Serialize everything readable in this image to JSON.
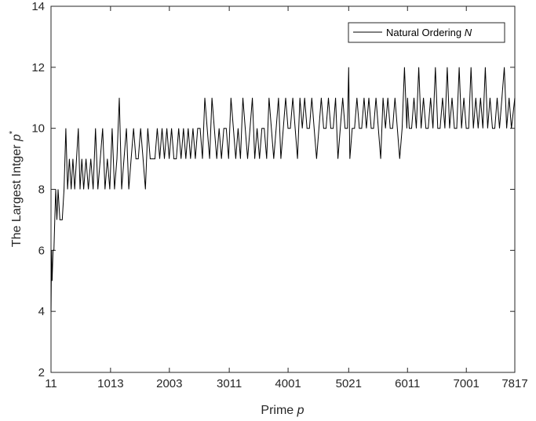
{
  "chart_data": {
    "type": "line",
    "xlabel": "Prime",
    "xlabel_var": "p",
    "ylabel": "The Largest Intger",
    "ylabel_var": "p",
    "ylabel_sup": "*",
    "x_ticks": [
      11,
      1013,
      2003,
      3011,
      4001,
      5021,
      6011,
      7001,
      7817
    ],
    "y_ticks": [
      2,
      4,
      6,
      8,
      10,
      12,
      14
    ],
    "xlim": [
      11,
      7817
    ],
    "ylim": [
      2,
      14
    ],
    "grid": false,
    "legend_position": "top-right",
    "color": "#000000",
    "series": [
      {
        "name": "Natural Ordering",
        "name_var": "N",
        "x": [
          11,
          20,
          30,
          45,
          60,
          75,
          90,
          110,
          130,
          160,
          200,
          230,
          260,
          290,
          320,
          350,
          380,
          410,
          440,
          470,
          500,
          530,
          560,
          600,
          640,
          680,
          720,
          760,
          800,
          840,
          880,
          920,
          960,
          1000,
          1040,
          1080,
          1120,
          1160,
          1200,
          1240,
          1280,
          1320,
          1360,
          1400,
          1440,
          1480,
          1520,
          1560,
          1600,
          1640,
          1680,
          1720,
          1760,
          1800,
          1840,
          1880,
          1920,
          1960,
          2000,
          2040,
          2080,
          2120,
          2160,
          2200,
          2240,
          2280,
          2320,
          2360,
          2400,
          2440,
          2480,
          2520,
          2560,
          2600,
          2640,
          2680,
          2720,
          2760,
          2800,
          2840,
          2880,
          2920,
          2960,
          3000,
          3040,
          3080,
          3120,
          3160,
          3200,
          3240,
          3280,
          3320,
          3360,
          3400,
          3440,
          3480,
          3520,
          3560,
          3600,
          3640,
          3680,
          3720,
          3760,
          3800,
          3840,
          3880,
          3920,
          3960,
          4000,
          4040,
          4080,
          4120,
          4160,
          4200,
          4240,
          4280,
          4320,
          4360,
          4400,
          4440,
          4480,
          4520,
          4560,
          4600,
          4640,
          4680,
          4720,
          4760,
          4800,
          4840,
          4880,
          4920,
          4960,
          5000,
          5021,
          5040,
          5080,
          5120,
          5160,
          5200,
          5240,
          5280,
          5320,
          5360,
          5400,
          5440,
          5480,
          5520,
          5560,
          5600,
          5640,
          5680,
          5720,
          5760,
          5800,
          5840,
          5880,
          5920,
          5960,
          6000,
          6011,
          6040,
          6080,
          6120,
          6160,
          6200,
          6240,
          6280,
          6320,
          6360,
          6400,
          6440,
          6480,
          6520,
          6560,
          6600,
          6640,
          6680,
          6720,
          6760,
          6800,
          6840,
          6880,
          6920,
          6960,
          7000,
          7040,
          7080,
          7120,
          7160,
          7200,
          7240,
          7280,
          7320,
          7360,
          7400,
          7440,
          7480,
          7520,
          7560,
          7600,
          7640,
          7680,
          7720,
          7760,
          7817
        ],
        "y": [
          4,
          6,
          5,
          6,
          6,
          7,
          8,
          7,
          8,
          7,
          7,
          8,
          10,
          8,
          9,
          8,
          9,
          8,
          9,
          10,
          8,
          9,
          8,
          9,
          8,
          9,
          8,
          10,
          8,
          9,
          10,
          8,
          9,
          8,
          10,
          8,
          9,
          11,
          8,
          9,
          10,
          8,
          9,
          10,
          9,
          9,
          10,
          9,
          8,
          10,
          9,
          9,
          9,
          10,
          9,
          10,
          9,
          10,
          9,
          10,
          9,
          9,
          10,
          9,
          10,
          9,
          10,
          9,
          10,
          9,
          10,
          10,
          9,
          11,
          10,
          9,
          11,
          10,
          9,
          10,
          9,
          10,
          10,
          9,
          11,
          10,
          9,
          10,
          9,
          11,
          10,
          9,
          10,
          11,
          9,
          10,
          9,
          10,
          10,
          9,
          11,
          10,
          9,
          10,
          11,
          9,
          10,
          11,
          10,
          10,
          11,
          10,
          9,
          11,
          10,
          11,
          10,
          10,
          11,
          10,
          9,
          10,
          11,
          10,
          10,
          11,
          10,
          10,
          11,
          9,
          10,
          11,
          10,
          10,
          12,
          9,
          10,
          10,
          11,
          10,
          10,
          11,
          10,
          11,
          10,
          10,
          11,
          10,
          9,
          11,
          10,
          11,
          10,
          10,
          11,
          10,
          9,
          10,
          12,
          10,
          11,
          10,
          10,
          11,
          10,
          12,
          10,
          11,
          10,
          10,
          11,
          10,
          12,
          10,
          10,
          11,
          10,
          12,
          10,
          11,
          10,
          10,
          12,
          10,
          11,
          10,
          10,
          12,
          10,
          11,
          10,
          11,
          10,
          12,
          10,
          11,
          10,
          10,
          11,
          10,
          11,
          12,
          10,
          11,
          10,
          11
        ]
      }
    ]
  }
}
